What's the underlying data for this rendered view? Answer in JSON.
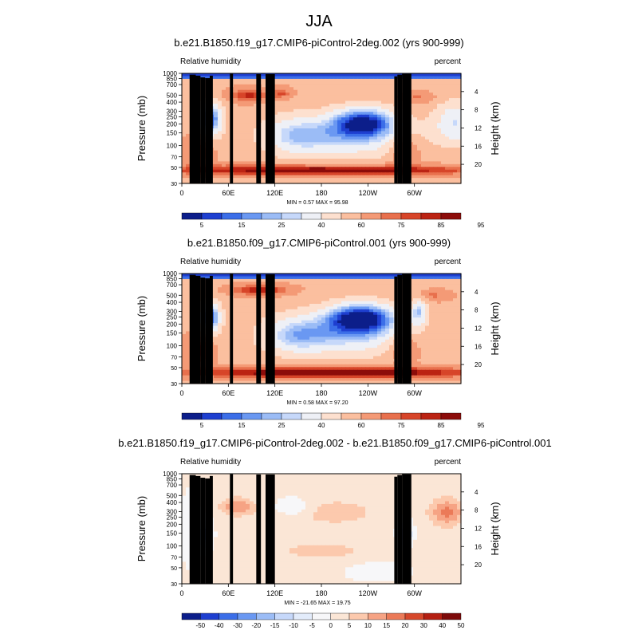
{
  "figure": {
    "title": "JJA"
  },
  "shared": {
    "left_label": "Relative humidity",
    "right_label": "percent",
    "ylabel": "Pressure (mb)",
    "ylabel_right": "Height (km)",
    "y_ticks": [
      "1000",
      "850",
      "700",
      "500",
      "400",
      "300",
      "250",
      "200",
      "150",
      "100",
      "70",
      "50",
      "30"
    ],
    "y_tick_values": [
      1000,
      850,
      700,
      500,
      400,
      300,
      250,
      200,
      150,
      100,
      70,
      50,
      30
    ],
    "height_ticks": [
      "4",
      "8",
      "12",
      "16",
      "20"
    ],
    "height_tick_values": [
      4,
      8,
      12,
      16,
      20
    ],
    "x_ticks": [
      "0",
      "60E",
      "120E",
      "180",
      "120W",
      "60W"
    ],
    "x_tick_values": [
      0,
      60,
      120,
      180,
      240,
      300
    ]
  },
  "colors": {
    "seq": [
      "#0c1e8a",
      "#1e3fd0",
      "#3b6ee8",
      "#6a98f2",
      "#9bbcf6",
      "#c6d8fa",
      "#eef0f6",
      "#fde0cf",
      "#fbbf9f",
      "#f49a76",
      "#e8704d",
      "#d74529",
      "#bb2313",
      "#8c0c0a"
    ],
    "diff": [
      "#0c1e8a",
      "#1e3fd0",
      "#3b6ee8",
      "#6a98f2",
      "#9bbcf6",
      "#c6d8fa",
      "#e3ecfb",
      "#f7f7f9",
      "#fbe6d6",
      "#fcc9ad",
      "#f6a384",
      "#eb7a58",
      "#d6482b",
      "#b41f12",
      "#7d0a0a"
    ],
    "topo": "#000000"
  },
  "chart_data": [
    {
      "type": "contour",
      "name": "panel-1",
      "title": "b.e21.B1850.f19_g17.CMIP6-piControl-2deg.002 (yrs 900-999)",
      "variable": "Relative humidity",
      "units": "percent",
      "stats_text": "MIN =   0.57  MAX =  95.98",
      "min": 0.57,
      "max": 95.98,
      "x_range": [
        0,
        360
      ],
      "y_range_mb": [
        1000,
        30
      ],
      "y_scale": "log",
      "colorbar_levels": [
        5,
        10,
        15,
        20,
        25,
        30,
        40,
        50,
        60,
        70,
        75,
        80,
        85,
        90,
        95
      ],
      "colorbar_labels": [
        "5",
        "15",
        "25",
        "40",
        "60",
        "75",
        "85",
        "95"
      ],
      "features": [
        {
          "kind": "min",
          "lon": 38,
          "p": 420,
          "value": 10
        },
        {
          "kind": "min",
          "lon": 205,
          "p": 450,
          "value": 5
        },
        {
          "kind": "max",
          "lon": 80,
          "p": 230,
          "value": 80
        },
        {
          "kind": "max",
          "lon": 180,
          "p": 920,
          "value": 90
        },
        {
          "kind": "max",
          "lon": 300,
          "p": 800,
          "value": 85
        }
      ]
    },
    {
      "type": "contour",
      "name": "panel-2",
      "title": "b.e21.B1850.f09_g17.CMIP6-piControl.001 (yrs 900-999)",
      "variable": "Relative humidity",
      "units": "percent",
      "stats_text": "MIN =   0.58  MAX =  97.20",
      "min": 0.58,
      "max": 97.2,
      "x_range": [
        0,
        360
      ],
      "y_range_mb": [
        1000,
        30
      ],
      "y_scale": "log",
      "colorbar_levels": [
        5,
        10,
        15,
        20,
        25,
        30,
        40,
        50,
        60,
        70,
        75,
        80,
        85,
        90,
        95
      ],
      "colorbar_labels": [
        "5",
        "15",
        "25",
        "40",
        "60",
        "75",
        "85",
        "95"
      ],
      "features": [
        {
          "kind": "min",
          "lon": 38,
          "p": 410,
          "value": 10
        },
        {
          "kind": "min",
          "lon": 225,
          "p": 430,
          "value": 3
        },
        {
          "kind": "max",
          "lon": 95,
          "p": 210,
          "value": 85
        },
        {
          "kind": "max",
          "lon": 200,
          "p": 940,
          "value": 95
        },
        {
          "kind": "max",
          "lon": 300,
          "p": 800,
          "value": 85
        }
      ]
    },
    {
      "type": "contour",
      "name": "panel-3",
      "title": "b.e21.B1850.f19_g17.CMIP6-piControl-2deg.002 - b.e21.B1850.f09_g17.CMIP6-piControl.001",
      "variable": "Relative humidity",
      "units": "percent",
      "stats_text": "MIN = -21.65  MAX =  19.75",
      "min": -21.65,
      "max": 19.75,
      "x_range": [
        0,
        360
      ],
      "y_range_mb": [
        1000,
        30
      ],
      "y_scale": "log",
      "colorbar_levels": [
        -50,
        -40,
        -30,
        -20,
        -15,
        -10,
        -5,
        0,
        5,
        10,
        15,
        20,
        30,
        40,
        50
      ],
      "colorbar_labels": [
        "-50",
        "-40",
        "-30",
        "-20",
        "-15",
        "-10",
        "-5",
        "0",
        "5",
        "10",
        "15",
        "20",
        "30",
        "40",
        "50"
      ],
      "features": [
        {
          "kind": "max",
          "lon": 340,
          "p": 350,
          "value": 20
        },
        {
          "kind": "max",
          "lon": 85,
          "p": 320,
          "value": 15
        },
        {
          "kind": "min",
          "lon": 28,
          "p": 560,
          "value": -20
        },
        {
          "kind": "min",
          "lon": 290,
          "p": 550,
          "value": -15
        }
      ]
    }
  ]
}
